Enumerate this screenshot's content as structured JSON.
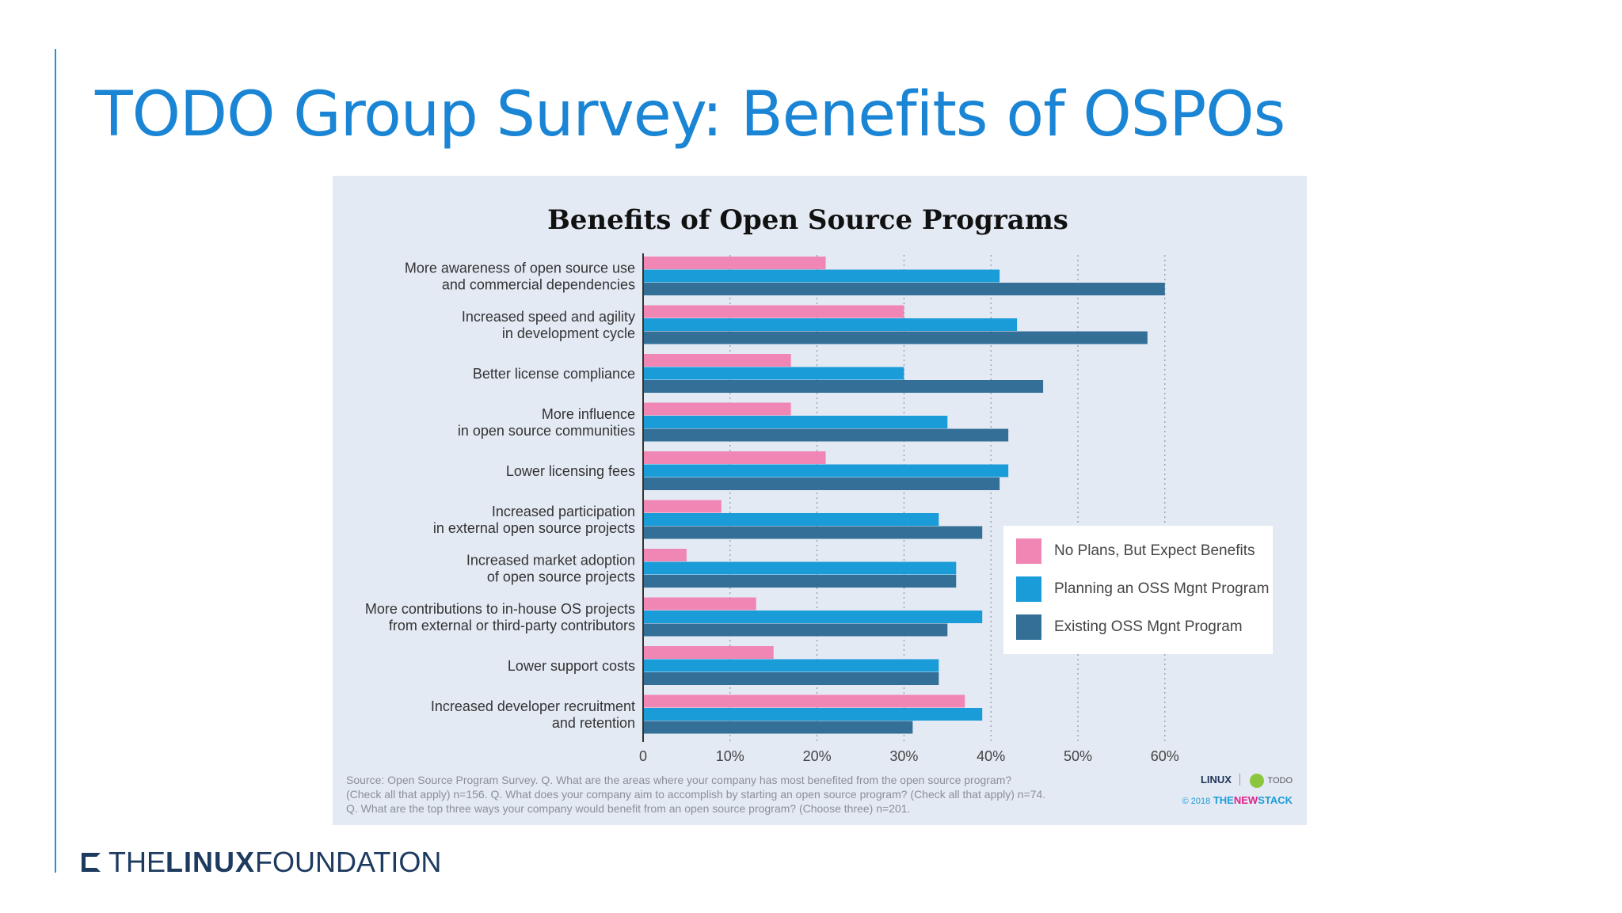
{
  "slide": {
    "title": "TODO Group Survey: Benefits of OSPOs",
    "footer_logo": {
      "the": "THE",
      "linux": "LINUX",
      "foundation": "FOUNDATION"
    }
  },
  "chart_data": {
    "type": "bar",
    "orientation": "horizontal",
    "title": "Benefits of Open Source Programs",
    "categories": [
      [
        "More awareness of open source use",
        "and commercial dependencies"
      ],
      [
        "Increased speed and agility",
        "in development cycle"
      ],
      [
        "Better license compliance"
      ],
      [
        "More influence",
        "in open source communities"
      ],
      [
        "Lower licensing fees"
      ],
      [
        "Increased participation",
        "in external open source projects"
      ],
      [
        "Increased market adoption",
        "of open source projects"
      ],
      [
        "More contributions to in-house OS projects",
        "from external or third-party contributors"
      ],
      [
        "Lower support costs"
      ],
      [
        "Increased developer recruitment",
        "and retention"
      ]
    ],
    "series": [
      {
        "name": "No Plans, But Expect Benefits",
        "color": "#f086b4",
        "values": [
          21,
          30,
          17,
          17,
          21,
          9,
          5,
          13,
          15,
          37
        ]
      },
      {
        "name": "Planning an OSS Mgnt Program",
        "color": "#1a9cd8",
        "values": [
          41,
          43,
          30,
          35,
          42,
          34,
          36,
          39,
          34,
          39
        ]
      },
      {
        "name": "Existing OSS Mgnt Program",
        "color": "#336f97",
        "values": [
          60,
          58,
          46,
          42,
          41,
          39,
          36,
          35,
          34,
          31
        ]
      }
    ],
    "xlim": [
      0,
      60
    ],
    "xticks": [
      0,
      10,
      20,
      30,
      40,
      50,
      60
    ],
    "xtick_labels": [
      "0",
      "10%",
      "20%",
      "30%",
      "40%",
      "50%",
      "60%"
    ],
    "grid": "vertical dotted",
    "legend_position": "right"
  },
  "source": [
    "Source: Open Source Program Survey. Q. What are the areas where your company has most benefited from the open source program?",
    "(Check all that apply) n=156. Q. What does your company aim to accomplish by starting an open source program? (Check all that apply) n=74.",
    "Q. What are the top three ways your company would benefit from an open source program? (Choose three) n=201."
  ],
  "logos": {
    "linux": "LINUX",
    "todo": "TODO",
    "copyright": "© 2018",
    "the": "THE",
    "new": "NEW",
    "stack": "STACK"
  }
}
